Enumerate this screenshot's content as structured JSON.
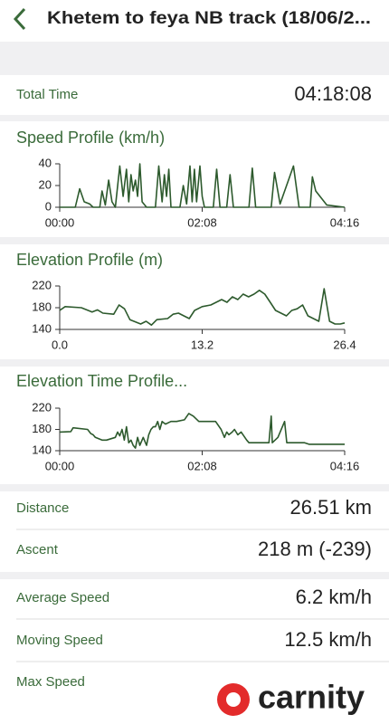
{
  "header": {
    "title": "Khetem to feya NB track  (18/06/2..."
  },
  "total_time": {
    "label": "Total Time",
    "value": "04:18:08"
  },
  "chart_data": [
    {
      "type": "line",
      "title": "Speed Profile (km/h)",
      "color": "#2d5a2d",
      "x": [
        0,
        14,
        18,
        22,
        27,
        30,
        36,
        38,
        41,
        44,
        47,
        50,
        54,
        57,
        60,
        62,
        64,
        66,
        68,
        70,
        72,
        74,
        78,
        86,
        89,
        92,
        94,
        96,
        98,
        100,
        108,
        111,
        114,
        117,
        119,
        121,
        123,
        126,
        128,
        130,
        138,
        141,
        144,
        150,
        153,
        156,
        170,
        173,
        176,
        190,
        193,
        198,
        210,
        215,
        225,
        227,
        230,
        240,
        256
      ],
      "values": [
        0,
        0,
        17,
        5,
        3,
        0,
        0,
        15,
        2,
        25,
        5,
        0,
        38,
        10,
        35,
        5,
        30,
        15,
        25,
        10,
        40,
        5,
        0,
        0,
        38,
        5,
        30,
        10,
        35,
        0,
        0,
        20,
        3,
        38,
        5,
        35,
        5,
        38,
        10,
        0,
        0,
        35,
        0,
        0,
        30,
        0,
        0,
        36,
        0,
        0,
        32,
        3,
        38,
        0,
        0,
        28,
        15,
        2,
        0
      ],
      "xlim": [
        0,
        256
      ],
      "xticks": [
        {
          "value": 0,
          "label": "00:00"
        },
        {
          "value": 128,
          "label": "02:08"
        },
        {
          "value": 256,
          "label": "04:16"
        }
      ],
      "ylim": [
        0,
        40
      ],
      "yticks": [
        0,
        20,
        40
      ]
    },
    {
      "type": "line",
      "title": "Elevation Profile (m)",
      "color": "#2d5a2d",
      "x": [
        0,
        0.5,
        2,
        3,
        3.5,
        4,
        5,
        5.5,
        6,
        6.5,
        7.5,
        8,
        8.5,
        9,
        10,
        10.5,
        11,
        11.5,
        12,
        12.5,
        13.2,
        14,
        15,
        15.5,
        16,
        16.5,
        17,
        17.5,
        18,
        18.5,
        19,
        19.5,
        20,
        20.5,
        21,
        21.5,
        22,
        22.5,
        23,
        23.5,
        24,
        24.5,
        25,
        25.5,
        26,
        26.4
      ],
      "values": [
        175,
        182,
        180,
        172,
        176,
        170,
        168,
        185,
        178,
        158,
        150,
        155,
        148,
        158,
        160,
        168,
        170,
        165,
        160,
        175,
        182,
        185,
        195,
        190,
        200,
        195,
        205,
        200,
        205,
        212,
        205,
        190,
        175,
        170,
        165,
        175,
        178,
        185,
        165,
        160,
        155,
        215,
        155,
        150,
        150,
        152
      ],
      "xlim": [
        0,
        26.4
      ],
      "xticks": [
        {
          "value": 0,
          "label": "0.0"
        },
        13.2,
        26.4
      ],
      "ylim": [
        140,
        220
      ],
      "yticks": [
        140,
        180,
        220
      ]
    },
    {
      "type": "line",
      "title": "Elevation Time Profile...",
      "color": "#2d5a2d",
      "x": [
        0,
        10,
        12,
        25,
        28,
        30,
        32,
        38,
        42,
        50,
        52,
        54,
        56,
        58,
        60,
        62,
        64,
        66,
        68,
        70,
        72,
        75,
        78,
        80,
        82,
        84,
        86,
        88,
        90,
        92,
        95,
        100,
        105,
        112,
        116,
        120,
        125,
        140,
        145,
        148,
        150,
        152,
        155,
        157,
        160,
        163,
        168,
        170,
        178,
        188,
        190,
        191,
        196,
        202,
        204,
        220,
        224,
        240,
        256
      ],
      "values": [
        175,
        176,
        183,
        180,
        172,
        170,
        165,
        160,
        160,
        165,
        175,
        168,
        180,
        160,
        185,
        155,
        160,
        150,
        145,
        165,
        150,
        165,
        150,
        170,
        180,
        185,
        185,
        195,
        180,
        195,
        190,
        195,
        195,
        198,
        210,
        205,
        195,
        195,
        180,
        165,
        175,
        170,
        175,
        180,
        170,
        175,
        160,
        155,
        155,
        155,
        205,
        155,
        165,
        195,
        155,
        155,
        152,
        152,
        152
      ],
      "xlim": [
        0,
        256
      ],
      "xticks": [
        {
          "value": 0,
          "label": "00:00"
        },
        {
          "value": 128,
          "label": "02:08"
        },
        {
          "value": 256,
          "label": "04:16"
        }
      ],
      "ylim": [
        140,
        220
      ],
      "yticks": [
        140,
        180,
        220
      ]
    }
  ],
  "stats": [
    {
      "label": "Distance",
      "value": "26.51 km"
    },
    {
      "label": "Ascent",
      "value": "218 m (-239)"
    },
    {
      "label": "Average Speed",
      "value": "6.2 km/h"
    },
    {
      "label": "Moving Speed",
      "value": "12.5 km/h"
    },
    {
      "label": "Max Speed"
    }
  ],
  "watermark": "carnity"
}
